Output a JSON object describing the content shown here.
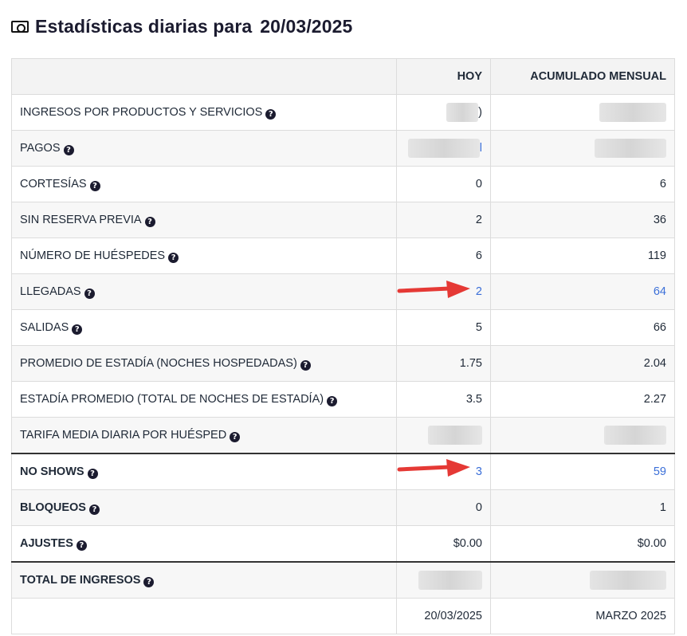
{
  "header": {
    "title": "Estadísticas diarias para",
    "date": "20/03/2025",
    "icon": "money-bill-icon"
  },
  "columns": {
    "label": "",
    "today": "HOY",
    "monthly": "ACUMULADO MENSUAL"
  },
  "rows": [
    {
      "label": "INGRESOS POR PRODUCTOS Y SERVICIOS",
      "today": ")",
      "monthly": "",
      "today_redacted": true,
      "monthly_redacted": true
    },
    {
      "label": "PAGOS",
      "today": "l",
      "monthly": "",
      "today_link": true,
      "today_redacted": true,
      "monthly_redacted": true
    },
    {
      "label": "CORTESÍAS",
      "today": "0",
      "monthly": "6"
    },
    {
      "label": "SIN RESERVA PREVIA",
      "today": "2",
      "monthly": "36"
    },
    {
      "label": "NÚMERO DE HUÉSPEDES",
      "today": "6",
      "monthly": "119"
    },
    {
      "label": "LLEGADAS",
      "today": "2",
      "monthly": "64",
      "link": true
    },
    {
      "label": "SALIDAS",
      "today": "5",
      "monthly": "66"
    },
    {
      "label": "PROMEDIO DE ESTADÍA (NOCHES HOSPEDADAS)",
      "today": "1.75",
      "monthly": "2.04"
    },
    {
      "label": "ESTADÍA PROMEDIO (TOTAL DE NOCHES DE ESTADÍA)",
      "today": "3.5",
      "monthly": "2.27"
    },
    {
      "label": "TARIFA MEDIA DIARIA POR HUÉSPED",
      "today": "",
      "monthly": "",
      "today_redacted": true,
      "monthly_redacted": true
    },
    {
      "label": "NO SHOWS",
      "today": "3",
      "monthly": "59",
      "link": true,
      "bold": true
    },
    {
      "label": "BLOQUEOS",
      "today": "0",
      "monthly": "1",
      "bold": true
    },
    {
      "label": "AJUSTES",
      "today": "$0.00",
      "monthly": "$0.00",
      "bold": true
    },
    {
      "label": "TOTAL DE INGRESOS",
      "today": "",
      "monthly": "",
      "bold": true,
      "today_redacted": true,
      "monthly_redacted": true
    }
  ],
  "footer": {
    "today": "20/03/2025",
    "monthly": "MARZO 2025"
  },
  "colors": {
    "link": "#3b6fd8",
    "arrow": "#e53935",
    "header_bg": "#f3f3f3"
  }
}
